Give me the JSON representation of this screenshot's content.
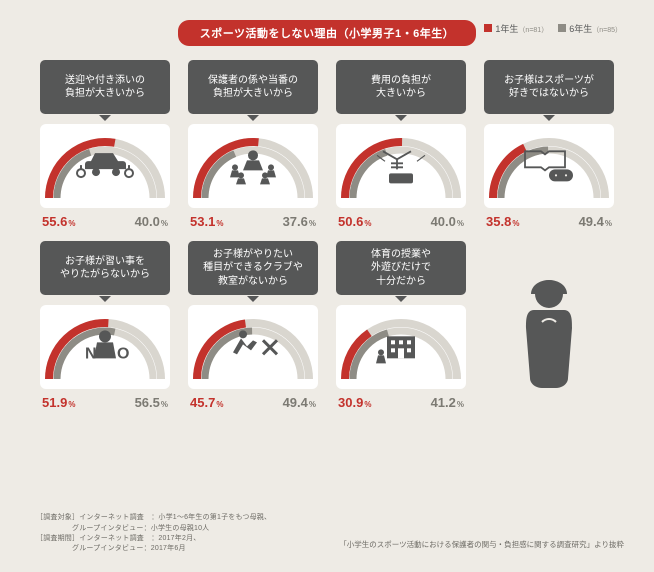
{
  "colors": {
    "background": "#eeebe5",
    "title_bg": "#c3322c",
    "grade1": "#c3322c",
    "grade6": "#8e8c85",
    "label_bg": "#565757",
    "card_bg": "#ffffff",
    "track": "#d9d6cf"
  },
  "title": "スポーツ活動をしない理由（小学男子1・6年生）",
  "legend": {
    "g1_label": "1年生",
    "g1_note": "（n=81）",
    "g6_label": "6年生",
    "g6_note": "（n=85）"
  },
  "unit": "%",
  "items": [
    {
      "label": "送迎や付き添いの\n負担が大きいから",
      "g1": 55.6,
      "g6": 40.0,
      "icon": "car"
    },
    {
      "label": "保護者の係や当番の\n負担が大きいから",
      "g1": 53.1,
      "g6": 37.6,
      "icon": "group"
    },
    {
      "label": "費用の負担が\n大きいから",
      "g1": 50.6,
      "g6": 40.0,
      "icon": "money"
    },
    {
      "label": "お子様はスポーツが\n好きではないから",
      "g1": 35.8,
      "g6": 49.4,
      "icon": "book-game"
    },
    {
      "label": "お子様が習い事を\nやりたがらないから",
      "g1": 51.9,
      "g6": 56.5,
      "icon": "no"
    },
    {
      "label": "お子様がやりたい\n種目ができるクラブや\n教室がないから",
      "g1": 45.7,
      "g6": 49.4,
      "icon": "kick-x"
    },
    {
      "label": "体育の授業や\n外遊びだけで\n十分だから",
      "g1": 30.9,
      "g6": 41.2,
      "icon": "school"
    }
  ],
  "footnotes": [
    "［調査対象］インターネット調査 ：小学1〜6年生の第1子をもつ母親、",
    "     グループインタビュー：小学生の母親10人",
    "［調査期間］インターネット調査 ：2017年2月、",
    "     グループインタビュー：2017年6月"
  ],
  "citation": "「小学生のスポーツ活動における保護者の関与・負担感に関する調査研究」より抜粋",
  "gauge": {
    "inner_r": 48,
    "outer_r": 60,
    "band": 6
  }
}
